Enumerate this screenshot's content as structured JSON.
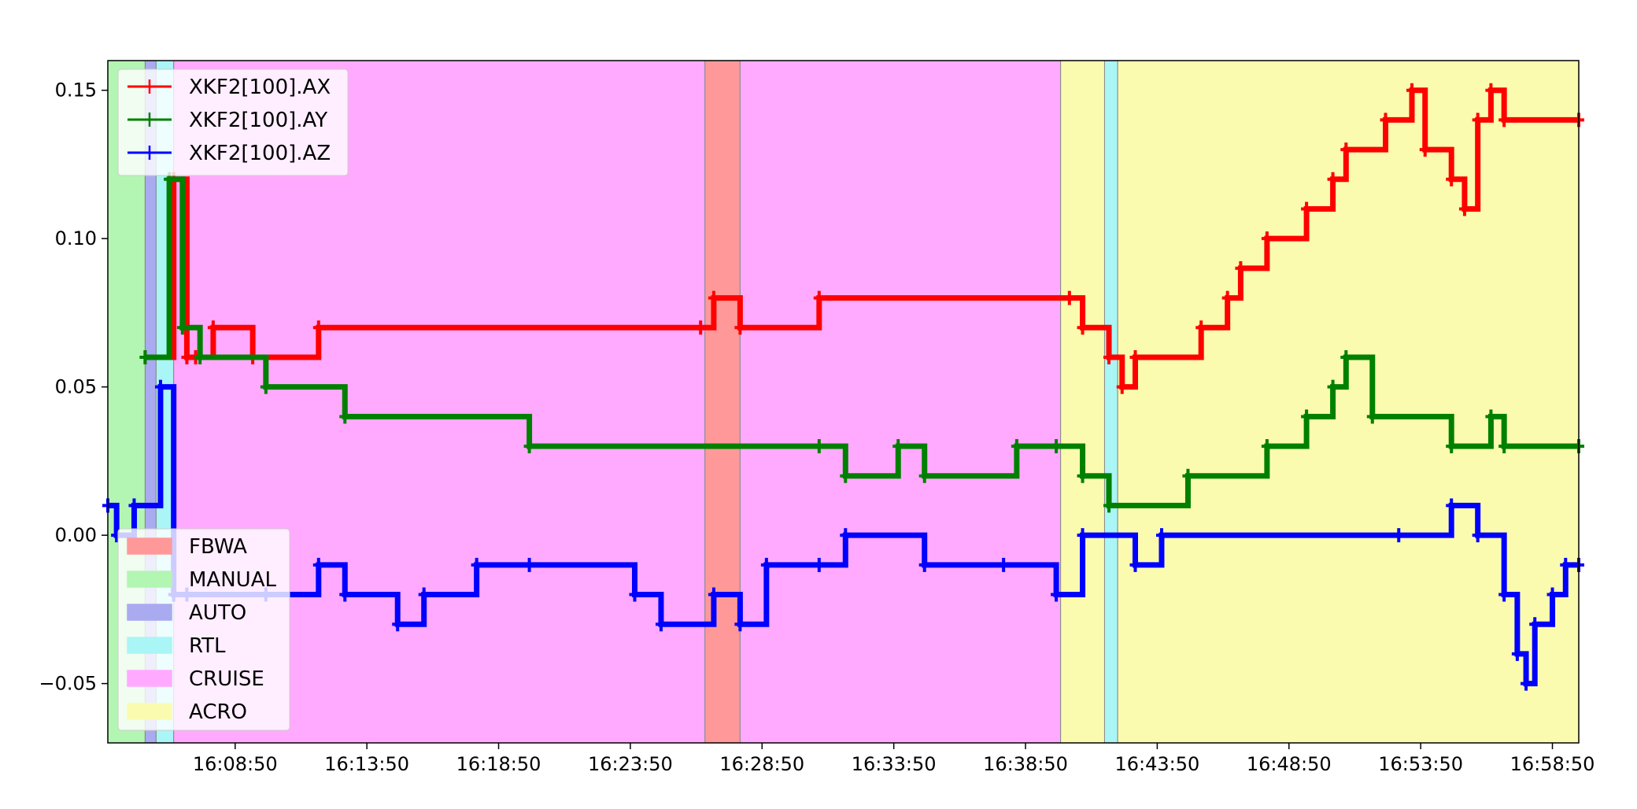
{
  "chart_data": {
    "type": "line",
    "title": "",
    "xlabel": "",
    "ylabel": "",
    "x_unit": "time (HH:MM:SS)",
    "xlim": [
      "16:04:00",
      "16:59:50"
    ],
    "ylim": [
      -0.07,
      0.16
    ],
    "x_ticks": [
      "16:08:50",
      "16:13:50",
      "16:18:50",
      "16:23:50",
      "16:28:50",
      "16:33:50",
      "16:38:50",
      "16:43:50",
      "16:48:50",
      "16:53:50",
      "16:58:50"
    ],
    "y_ticks": [
      0.15,
      0.1,
      0.05,
      0.0,
      -0.05
    ],
    "y_tick_labels": [
      "0.15",
      "0.10",
      "0.05",
      "0.00",
      "−0.05"
    ],
    "grid": false,
    "series": [
      {
        "name": "XKF2[100].AX",
        "color": "#ff0000",
        "points": [
          [
            "16:05:25",
            0.06
          ],
          [
            "16:06:30",
            0.12
          ],
          [
            "16:07:00",
            0.06
          ],
          [
            "16:07:20",
            0.06
          ],
          [
            "16:08:00",
            0.07
          ],
          [
            "16:09:30",
            0.06
          ],
          [
            "16:12:00",
            0.07
          ],
          [
            "16:26:30",
            0.07
          ],
          [
            "16:27:00",
            0.08
          ],
          [
            "16:28:00",
            0.07
          ],
          [
            "16:31:00",
            0.08
          ],
          [
            "16:40:30",
            0.08
          ],
          [
            "16:41:00",
            0.07
          ],
          [
            "16:42:00",
            0.06
          ],
          [
            "16:42:30",
            0.05
          ],
          [
            "16:43:00",
            0.06
          ],
          [
            "16:45:30",
            0.07
          ],
          [
            "16:46:30",
            0.08
          ],
          [
            "16:47:00",
            0.09
          ],
          [
            "16:48:00",
            0.1
          ],
          [
            "16:49:30",
            0.11
          ],
          [
            "16:50:30",
            0.12
          ],
          [
            "16:51:00",
            0.13
          ],
          [
            "16:52:30",
            0.14
          ],
          [
            "16:53:30",
            0.15
          ],
          [
            "16:54:00",
            0.13
          ],
          [
            "16:55:00",
            0.12
          ],
          [
            "16:55:30",
            0.11
          ],
          [
            "16:56:00",
            0.14
          ],
          [
            "16:56:30",
            0.15
          ],
          [
            "16:57:00",
            0.14
          ],
          [
            "16:59:50",
            0.14
          ]
        ]
      },
      {
        "name": "XKF2[100].AY",
        "color": "#008000",
        "points": [
          [
            "16:05:25",
            0.06
          ],
          [
            "16:06:20",
            0.12
          ],
          [
            "16:06:50",
            0.07
          ],
          [
            "16:07:30",
            0.06
          ],
          [
            "16:10:00",
            0.05
          ],
          [
            "16:13:00",
            0.04
          ],
          [
            "16:20:00",
            0.03
          ],
          [
            "16:31:00",
            0.03
          ],
          [
            "16:32:00",
            0.02
          ],
          [
            "16:34:00",
            0.03
          ],
          [
            "16:35:00",
            0.02
          ],
          [
            "16:38:30",
            0.03
          ],
          [
            "16:40:00",
            0.03
          ],
          [
            "16:41:00",
            0.02
          ],
          [
            "16:42:00",
            0.01
          ],
          [
            "16:45:00",
            0.02
          ],
          [
            "16:48:00",
            0.03
          ],
          [
            "16:49:30",
            0.04
          ],
          [
            "16:50:30",
            0.05
          ],
          [
            "16:51:00",
            0.06
          ],
          [
            "16:52:00",
            0.04
          ],
          [
            "16:55:00",
            0.03
          ],
          [
            "16:56:30",
            0.04
          ],
          [
            "16:57:00",
            0.03
          ],
          [
            "16:59:50",
            0.03
          ]
        ]
      },
      {
        "name": "XKF2[100].AZ",
        "color": "#0000ff",
        "points": [
          [
            "16:04:00",
            0.01
          ],
          [
            "16:04:20",
            0.0
          ],
          [
            "16:05:00",
            0.01
          ],
          [
            "16:06:00",
            0.05
          ],
          [
            "16:06:30",
            -0.02
          ],
          [
            "16:07:00",
            -0.02
          ],
          [
            "16:10:00",
            -0.02
          ],
          [
            "16:12:00",
            -0.01
          ],
          [
            "16:13:00",
            -0.02
          ],
          [
            "16:15:00",
            -0.03
          ],
          [
            "16:16:00",
            -0.02
          ],
          [
            "16:18:00",
            -0.01
          ],
          [
            "16:20:00",
            -0.01
          ],
          [
            "16:24:00",
            -0.02
          ],
          [
            "16:25:00",
            -0.03
          ],
          [
            "16:27:00",
            -0.02
          ],
          [
            "16:28:00",
            -0.03
          ],
          [
            "16:29:00",
            -0.01
          ],
          [
            "16:31:00",
            -0.01
          ],
          [
            "16:32:00",
            0.0
          ],
          [
            "16:35:00",
            -0.01
          ],
          [
            "16:38:00",
            -0.01
          ],
          [
            "16:40:00",
            -0.02
          ],
          [
            "16:41:00",
            0.0
          ],
          [
            "16:43:00",
            -0.01
          ],
          [
            "16:44:00",
            0.0
          ],
          [
            "16:53:00",
            0.0
          ],
          [
            "16:55:00",
            0.01
          ],
          [
            "16:56:00",
            0.0
          ],
          [
            "16:57:00",
            -0.02
          ],
          [
            "16:57:30",
            -0.04
          ],
          [
            "16:57:50",
            -0.05
          ],
          [
            "16:58:10",
            -0.03
          ],
          [
            "16:58:50",
            -0.02
          ],
          [
            "16:59:20",
            -0.01
          ],
          [
            "16:59:50",
            -0.01
          ]
        ]
      }
    ],
    "modes": [
      {
        "name": "FBWA",
        "color": "#ff9999"
      },
      {
        "name": "MANUAL",
        "color": "#b3f5b3"
      },
      {
        "name": "AUTO",
        "color": "#aaaaf0"
      },
      {
        "name": "RTL",
        "color": "#aaf5f5"
      },
      {
        "name": "CRUISE",
        "color": "#ffaaff"
      },
      {
        "name": "ACRO",
        "color": "#fbfbaf"
      }
    ],
    "mode_bands": [
      {
        "mode": "MANUAL",
        "start": "16:04:00",
        "end": "16:05:25"
      },
      {
        "mode": "AUTO",
        "start": "16:05:25",
        "end": "16:05:50"
      },
      {
        "mode": "RTL",
        "start": "16:05:50",
        "end": "16:06:30"
      },
      {
        "mode": "CRUISE",
        "start": "16:06:30",
        "end": "16:26:40"
      },
      {
        "mode": "FBWA",
        "start": "16:26:40",
        "end": "16:28:00"
      },
      {
        "mode": "CRUISE",
        "start": "16:28:00",
        "end": "16:40:10"
      },
      {
        "mode": "ACRO",
        "start": "16:40:10",
        "end": "16:41:50"
      },
      {
        "mode": "RTL",
        "start": "16:41:50",
        "end": "16:42:20"
      },
      {
        "mode": "ACRO",
        "start": "16:42:20",
        "end": "16:59:50"
      }
    ],
    "series_legend_location": "upper left",
    "mode_legend_location": "lower left"
  }
}
